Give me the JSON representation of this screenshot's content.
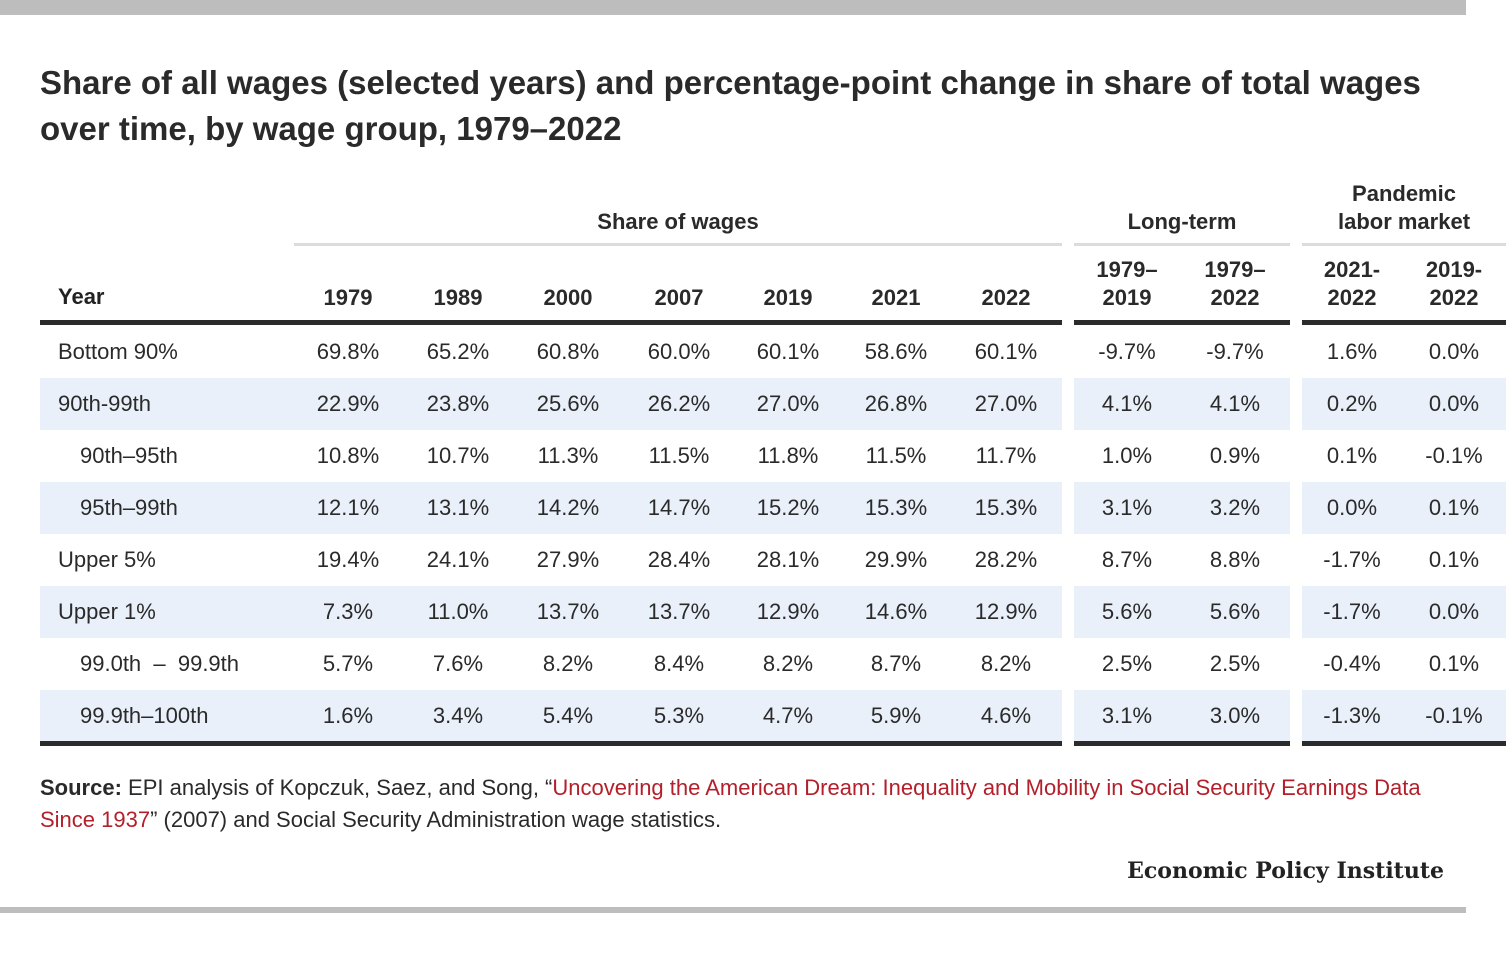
{
  "title": "Share of all wages (selected years) and percentage-point change in share of total wages over time, by wage group, 1979–2022",
  "groups": {
    "share": "Share of wages",
    "longterm": "Long-term",
    "pandemic_l1": "Pandemic",
    "pandemic_l2": "labor market"
  },
  "row_header": "Year",
  "columns": [
    {
      "l1": "",
      "l2": "1979"
    },
    {
      "l1": "",
      "l2": "1989"
    },
    {
      "l1": "",
      "l2": "2000"
    },
    {
      "l1": "",
      "l2": "2007"
    },
    {
      "l1": "",
      "l2": "2019"
    },
    {
      "l1": "",
      "l2": "2021"
    },
    {
      "l1": "",
      "l2": "2022"
    },
    {
      "l1": "1979–",
      "l2": "2019"
    },
    {
      "l1": "1979–",
      "l2": "2022"
    },
    {
      "l1": "2021-",
      "l2": "2022"
    },
    {
      "l1": "2019-",
      "l2": "2022"
    }
  ],
  "chart_data": {
    "type": "table",
    "title": "Share of all wages (selected years) and percentage-point change in share of total wages over time, by wage group, 1979–2022",
    "rows": [
      {
        "label": "Bottom 90%",
        "indent": false,
        "values": [
          "69.8%",
          "65.2%",
          "60.8%",
          "60.0%",
          "60.1%",
          "58.6%",
          "60.1%",
          "-9.7%",
          "-9.7%",
          "1.6%",
          "0.0%"
        ]
      },
      {
        "label": "90th-99th",
        "indent": false,
        "values": [
          "22.9%",
          "23.8%",
          "25.6%",
          "26.2%",
          "27.0%",
          "26.8%",
          "27.0%",
          "4.1%",
          "4.1%",
          "0.2%",
          "0.0%"
        ]
      },
      {
        "label": "90th–95th",
        "indent": true,
        "values": [
          "10.8%",
          "10.7%",
          "11.3%",
          "11.5%",
          "11.8%",
          "11.5%",
          "11.7%",
          "1.0%",
          "0.9%",
          "0.1%",
          "-0.1%"
        ]
      },
      {
        "label": "95th–99th",
        "indent": true,
        "values": [
          "12.1%",
          "13.1%",
          "14.2%",
          "14.7%",
          "15.2%",
          "15.3%",
          "15.3%",
          "3.1%",
          "3.2%",
          "0.0%",
          "0.1%"
        ]
      },
      {
        "label": "Upper 5%",
        "indent": false,
        "values": [
          "19.4%",
          "24.1%",
          "27.9%",
          "28.4%",
          "28.1%",
          "29.9%",
          "28.2%",
          "8.7%",
          "8.8%",
          "-1.7%",
          "0.1%"
        ]
      },
      {
        "label": "Upper 1%",
        "indent": false,
        "values": [
          "7.3%",
          "11.0%",
          "13.7%",
          "13.7%",
          "12.9%",
          "14.6%",
          "12.9%",
          "5.6%",
          "5.6%",
          "-1.7%",
          "0.0%"
        ]
      },
      {
        "label": "99.0th  –  99.9th",
        "indent": true,
        "values": [
          "5.7%",
          "7.6%",
          "8.2%",
          "8.4%",
          "8.2%",
          "8.7%",
          "8.2%",
          "2.5%",
          "2.5%",
          "-0.4%",
          "0.1%"
        ]
      },
      {
        "label": "99.9th–100th",
        "indent": true,
        "values": [
          "1.6%",
          "3.4%",
          "5.4%",
          "5.3%",
          "4.7%",
          "5.9%",
          "4.6%",
          "3.1%",
          "3.0%",
          "-1.3%",
          "-0.1%"
        ]
      }
    ]
  },
  "source": {
    "label": "Source:",
    "text_before": " EPI analysis of Kopczuk, Saez, and Song, “",
    "link_text": "Uncovering the American Dream: Inequality and Mobility in Social Security Earnings Data Since 1937",
    "text_after": "” (2007) and Social Security Administration wage statistics."
  },
  "brand": "Economic Policy Institute",
  "colors": {
    "link": "#b3202b",
    "band": "#e9f0fa",
    "rule": "#2b2b2b"
  }
}
